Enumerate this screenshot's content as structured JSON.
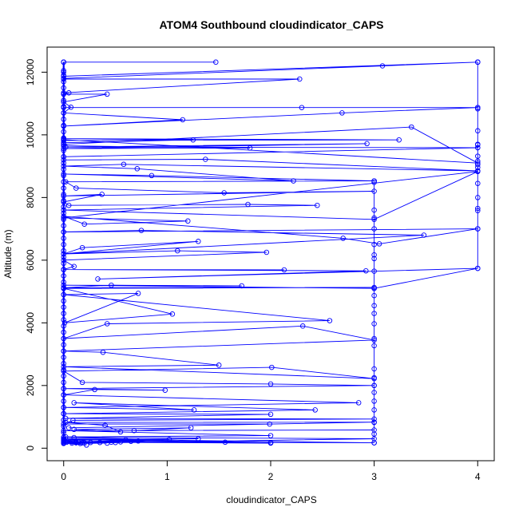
{
  "chart_data": {
    "type": "line",
    "title": "ATOM4 Southbound cloudindicator_CAPS",
    "xlabel": "cloudindicator_CAPS",
    "ylabel": "Altitude (m)",
    "xlim": [
      -0.16,
      4.16
    ],
    "ylim": [
      -400,
      12800
    ],
    "xticks": [
      0,
      1,
      2,
      3,
      4
    ],
    "yticks": [
      0,
      2000,
      4000,
      6000,
      8000,
      10000,
      12000
    ],
    "grid": false,
    "legend": "none",
    "marker": "open-circle",
    "series_color": "#0000ff",
    "series": [
      {
        "x": [
          0,
          0,
          1.47,
          0,
          0,
          4,
          3.08,
          0,
          0,
          2.28,
          0,
          0.05,
          0,
          0.42,
          0,
          0.07,
          0,
          1.15,
          0,
          0,
          2.3,
          4,
          2.69,
          0,
          0,
          3.36,
          4,
          0,
          0,
          3.24,
          0,
          1.25,
          0,
          0,
          1.8,
          0,
          2.93,
          0.02,
          4,
          0,
          0,
          1.37,
          4,
          0.58,
          0,
          0.71,
          2.22,
          0,
          0.85,
          3,
          0.02,
          0.12,
          1.55,
          3,
          0,
          0.37,
          0,
          0.05,
          1.78,
          2.45,
          0,
          3,
          4,
          0,
          1.2,
          0.2,
          0,
          2.7,
          3.05,
          4,
          0,
          0.75,
          3.48,
          0,
          1.3,
          0.18,
          0,
          1.1,
          1.96,
          0,
          0.1,
          0,
          2.13,
          0,
          2.92,
          0.33,
          4,
          3,
          0,
          1.72,
          0.46,
          0,
          3,
          0,
          1.05,
          0.01,
          0.72,
          0,
          2.57,
          0.42,
          0,
          2.31,
          3,
          0,
          0.38,
          1.5,
          0,
          3,
          2.01,
          0,
          0.18,
          2,
          3,
          0,
          0.98,
          0.3,
          0,
          2.85,
          0,
          1.26,
          0.1,
          2.43,
          0,
          2,
          0.02,
          3,
          0.09,
          0,
          1.99,
          0.05,
          3,
          0.02,
          0.4,
          0.55,
          0.1,
          1.23,
          0.68,
          3,
          0,
          2,
          0.02,
          0.1
        ],
        "y": [
          12050,
          12320,
          12320,
          12320,
          11870,
          12320,
          12200,
          11800,
          11780,
          11780,
          11340,
          11340,
          11300,
          11300,
          11050,
          10880,
          10700,
          10480,
          10280,
          10870,
          10870,
          10870,
          10700,
          10280,
          9700,
          10250,
          9100,
          9850,
          9820,
          9840,
          9880,
          9840,
          9750,
          9650,
          9580,
          9560,
          9720,
          9610,
          9590,
          9300,
          9200,
          9220,
          8850,
          9060,
          9000,
          8920,
          8530,
          8750,
          8700,
          8530,
          8500,
          8300,
          8150,
          8200,
          8050,
          8100,
          7860,
          7750,
          7780,
          7750,
          7600,
          7300,
          8830,
          7350,
          7250,
          7150,
          7400,
          6700,
          6520,
          7000,
          6900,
          6950,
          6800,
          6200,
          6600,
          6400,
          6200,
          6300,
          6250,
          6000,
          5800,
          5700,
          5690,
          5700,
          5660,
          5400,
          5740,
          5100,
          5200,
          5180,
          5200,
          5120,
          5130,
          5100,
          4280,
          4000,
          4940,
          4900,
          4070,
          3970,
          3500,
          3900,
          3450,
          3100,
          3060,
          2650,
          2600,
          2220,
          2580,
          2460,
          2100,
          2050,
          2000,
          1900,
          1850,
          1870,
          1700,
          1450,
          1300,
          1220,
          1450,
          1220,
          1100,
          1080,
          950,
          930,
          890,
          770,
          770,
          650,
          830,
          820,
          730,
          520,
          600,
          650,
          560,
          580,
          560,
          400,
          360,
          340
        ]
      },
      {
        "x": [
          3,
          3,
          3,
          3,
          3,
          3,
          3,
          3,
          3,
          3,
          3,
          3,
          3,
          3,
          3,
          3,
          3,
          3,
          3,
          3,
          3,
          3,
          3,
          3,
          3
        ],
        "y": [
          170,
          450,
          820,
          1220,
          1500,
          1780,
          2000,
          2250,
          2530,
          3270,
          3500,
          3970,
          4300,
          4550,
          4870,
          5100,
          5650,
          6050,
          6170,
          6500,
          7000,
          7350,
          7600,
          8480,
          8530
        ]
      },
      {
        "x": [
          4,
          4,
          4,
          4,
          4,
          4,
          4,
          4,
          4,
          4,
          4,
          4,
          4,
          4,
          4,
          4,
          4,
          4,
          4
        ],
        "y": [
          5740,
          7000,
          7580,
          7650,
          8000,
          8450,
          8850,
          8960,
          9050,
          9160,
          9320,
          9590,
          9700,
          9680,
          10130,
          10830,
          10870,
          12320,
          12320
        ]
      },
      {
        "x": [
          0,
          0.18,
          0.26,
          0.35,
          0.03,
          0.46,
          0.55,
          0,
          0.72,
          1.02,
          0.12,
          2,
          0.6,
          0.14,
          3,
          0,
          1.56,
          0.08,
          2,
          0.5,
          0.65,
          2,
          0,
          3,
          0,
          0.12,
          0.08,
          0,
          0.2,
          0,
          1.3,
          0,
          0.16,
          0.42,
          0,
          0.22,
          0
        ],
        "y": [
          160,
          170,
          180,
          180,
          190,
          190,
          200,
          210,
          230,
          280,
          190,
          160,
          260,
          200,
          170,
          300,
          190,
          200,
          180,
          180,
          220,
          170,
          350,
          300,
          150,
          170,
          160,
          230,
          170,
          250,
          300,
          270,
          150,
          160,
          180,
          100,
          170
        ]
      }
    ],
    "y_axis_dense_x": 0,
    "y_axis_dense_y": [
      160,
      300,
      500,
      700,
      900,
      1100,
      1300,
      1500,
      1700,
      1900,
      2100,
      2300,
      2500,
      2700,
      2900,
      3100,
      3300,
      3500,
      3700,
      3900,
      4100,
      4300,
      4500,
      4700,
      4900,
      5100,
      5300,
      5500,
      5700,
      5900,
      6100,
      6300,
      6500,
      6700,
      6900,
      7100,
      7300,
      7500,
      7700,
      7900,
      8100,
      8300,
      8500,
      8700,
      8900,
      9100,
      9300,
      9500,
      9700,
      9900,
      10100,
      10300,
      10500,
      10700,
      10900,
      11100,
      11300,
      11500,
      11700,
      11900,
      12000,
      12320
    ]
  }
}
